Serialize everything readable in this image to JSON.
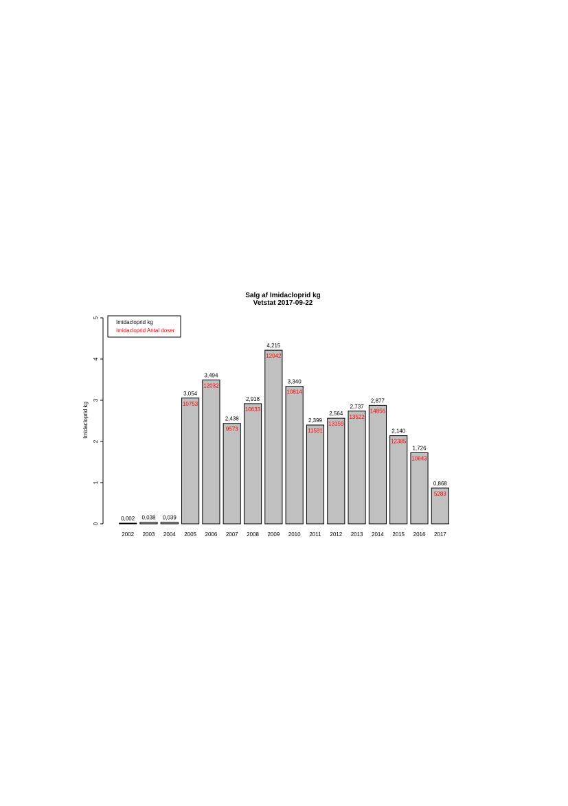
{
  "chart_data": {
    "type": "bar",
    "title": "Salg af  Imidacloprid kg",
    "subtitle": "Vetstat 2017-09-22",
    "xlabel": "",
    "ylabel": "Imidacloprid kg",
    "ylim": [
      0,
      5
    ],
    "yticks": [
      "0",
      "1",
      "2",
      "3",
      "4",
      "5"
    ],
    "grid": false,
    "legend_position": "top-left",
    "categories": [
      "2002",
      "2003",
      "2004",
      "2005",
      "2006",
      "2007",
      "2008",
      "2009",
      "2010",
      "2011",
      "2012",
      "2013",
      "2014",
      "2015",
      "2016",
      "2017"
    ],
    "series": [
      {
        "name": "Imidacloprid kg",
        "color": "#000000",
        "values": [
          0.002,
          0.038,
          0.039,
          3.054,
          3.494,
          2.438,
          2.918,
          4.215,
          3.34,
          2.399,
          2.564,
          2.737,
          2.877,
          2.14,
          1.726,
          0.868
        ],
        "labels": [
          "0,002",
          "0,038",
          "0,039",
          "3,054",
          "3,494",
          "2,438",
          "2,918",
          "4,215",
          "3,340",
          "2,399",
          "2,564",
          "2,737",
          "2,877",
          "2,140",
          "1,726",
          "0,868"
        ]
      },
      {
        "name": "Imidacloprid Antal doser",
        "color": "#ff0000",
        "values": [
          null,
          null,
          null,
          10753,
          12032,
          9573,
          10633,
          12042,
          10814,
          11591,
          13159,
          13522,
          14856,
          12385,
          10643,
          5283
        ],
        "labels": [
          "",
          "",
          "",
          "10753",
          "12032",
          "9573",
          "10633",
          "12042",
          "10814",
          "11591",
          "13159",
          "13522",
          "14856",
          "12385",
          "10643",
          "5283"
        ]
      }
    ],
    "bar_color": "#c0c0c0"
  }
}
